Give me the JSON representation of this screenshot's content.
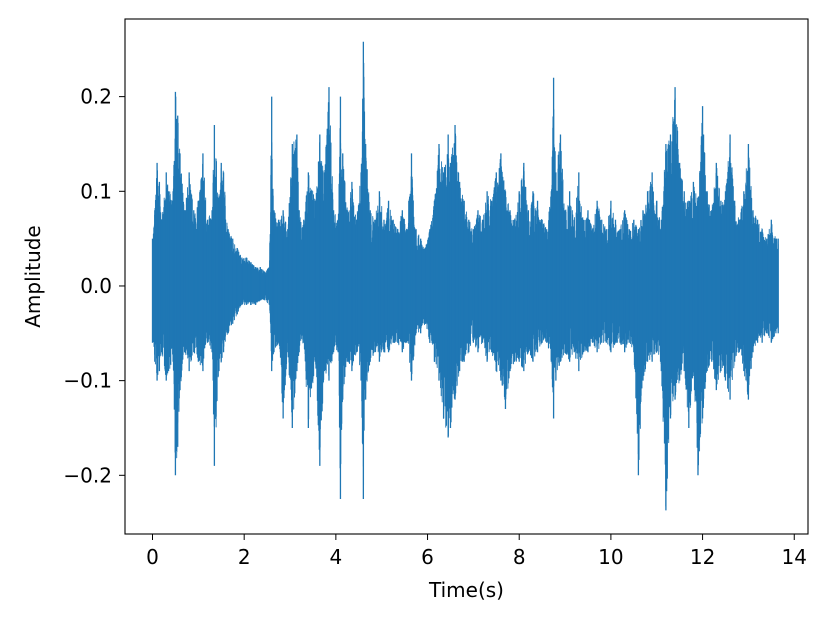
{
  "chart_data": {
    "type": "line",
    "title": "",
    "xlabel": "Time(s)",
    "ylabel": "Amplitude",
    "xlim": [
      -0.6,
      14.3
    ],
    "ylim": [
      -0.262,
      0.282
    ],
    "xticks": [
      0,
      2,
      4,
      6,
      8,
      10,
      12,
      14
    ],
    "xtick_labels": [
      "0",
      "2",
      "4",
      "6",
      "8",
      "10",
      "12",
      "14"
    ],
    "yticks": [
      0.2,
      0.1,
      0.0,
      -0.1,
      -0.2
    ],
    "ytick_labels": [
      "0.2",
      "0.1",
      "0.0",
      "−0.1",
      "−0.2"
    ],
    "grid": false,
    "legend": "none",
    "series": [
      {
        "color": "#1f77b4",
        "duration_s": 13.65,
        "envelope": {
          "t": [
            0.0,
            0.05,
            0.1,
            0.15,
            0.2,
            0.3,
            0.35,
            0.45,
            0.5,
            0.55,
            0.6,
            0.7,
            0.8,
            0.9,
            1.0,
            1.1,
            1.2,
            1.3,
            1.35,
            1.45,
            1.5,
            1.55,
            1.65,
            1.75,
            1.85,
            1.95,
            2.05,
            2.15,
            2.25,
            2.35,
            2.45,
            2.55,
            2.6,
            2.65,
            2.75,
            2.85,
            2.95,
            3.05,
            3.15,
            3.2,
            3.3,
            3.4,
            3.55,
            3.65,
            3.75,
            3.85,
            3.95,
            4.05,
            4.1,
            4.15,
            4.25,
            4.35,
            4.45,
            4.55,
            4.6,
            4.65,
            4.75,
            4.85,
            4.95,
            5.05,
            5.15,
            5.25,
            5.35,
            5.45,
            5.55,
            5.65,
            5.75,
            5.85,
            5.95,
            6.05,
            6.15,
            6.25,
            6.35,
            6.45,
            6.5,
            6.6,
            6.7,
            6.8,
            6.9,
            7.0,
            7.1,
            7.2,
            7.3,
            7.4,
            7.5,
            7.6,
            7.7,
            7.8,
            7.9,
            8.0,
            8.1,
            8.2,
            8.3,
            8.4,
            8.5,
            8.6,
            8.7,
            8.75,
            8.8,
            8.9,
            9.0,
            9.1,
            9.2,
            9.3,
            9.4,
            9.5,
            9.6,
            9.7,
            9.8,
            9.9,
            10.0,
            10.1,
            10.2,
            10.3,
            10.4,
            10.5,
            10.6,
            10.7,
            10.8,
            10.9,
            11.0,
            11.1,
            11.2,
            11.3,
            11.4,
            11.5,
            11.6,
            11.7,
            11.8,
            11.9,
            12.0,
            12.1,
            12.2,
            12.3,
            12.4,
            12.5,
            12.6,
            12.7,
            12.8,
            12.9,
            13.0,
            13.1,
            13.2,
            13.3,
            13.4,
            13.5,
            13.6,
            13.65
          ],
          "max": [
            0.05,
            0.08,
            0.13,
            0.11,
            0.07,
            0.12,
            0.1,
            0.1,
            0.205,
            0.18,
            0.14,
            0.08,
            0.12,
            0.08,
            0.09,
            0.14,
            0.07,
            0.08,
            0.17,
            0.09,
            0.13,
            0.12,
            0.06,
            0.05,
            0.04,
            0.03,
            0.03,
            0.025,
            0.02,
            0.02,
            0.015,
            0.02,
            0.2,
            0.08,
            0.07,
            0.08,
            0.06,
            0.15,
            0.16,
            0.08,
            0.07,
            0.12,
            0.09,
            0.16,
            0.12,
            0.21,
            0.08,
            0.07,
            0.2,
            0.14,
            0.08,
            0.11,
            0.07,
            0.12,
            0.258,
            0.15,
            0.08,
            0.07,
            0.1,
            0.07,
            0.09,
            0.07,
            0.06,
            0.08,
            0.06,
            0.14,
            0.06,
            0.05,
            0.04,
            0.06,
            0.09,
            0.15,
            0.12,
            0.16,
            0.13,
            0.17,
            0.11,
            0.09,
            0.07,
            0.06,
            0.08,
            0.07,
            0.1,
            0.09,
            0.12,
            0.14,
            0.1,
            0.08,
            0.07,
            0.1,
            0.13,
            0.08,
            0.1,
            0.09,
            0.07,
            0.06,
            0.1,
            0.22,
            0.12,
            0.16,
            0.08,
            0.1,
            0.07,
            0.12,
            0.07,
            0.08,
            0.06,
            0.09,
            0.07,
            0.06,
            0.09,
            0.07,
            0.06,
            0.08,
            0.06,
            0.07,
            0.06,
            0.08,
            0.1,
            0.12,
            0.09,
            0.07,
            0.15,
            0.16,
            0.21,
            0.13,
            0.1,
            0.09,
            0.11,
            0.09,
            0.19,
            0.1,
            0.08,
            0.13,
            0.09,
            0.1,
            0.16,
            0.09,
            0.07,
            0.1,
            0.15,
            0.08,
            0.07,
            0.06,
            0.05,
            0.07,
            0.05,
            0.05
          ],
          "min": [
            -0.06,
            -0.08,
            -0.1,
            -0.09,
            -0.07,
            -0.1,
            -0.09,
            -0.08,
            -0.2,
            -0.17,
            -0.11,
            -0.07,
            -0.09,
            -0.07,
            -0.08,
            -0.09,
            -0.06,
            -0.07,
            -0.19,
            -0.09,
            -0.08,
            -0.07,
            -0.05,
            -0.04,
            -0.03,
            -0.02,
            -0.02,
            -0.02,
            -0.02,
            -0.015,
            -0.015,
            -0.02,
            -0.09,
            -0.07,
            -0.06,
            -0.14,
            -0.07,
            -0.15,
            -0.09,
            -0.07,
            -0.06,
            -0.15,
            -0.08,
            -0.19,
            -0.09,
            -0.1,
            -0.07,
            -0.07,
            -0.225,
            -0.12,
            -0.08,
            -0.09,
            -0.07,
            -0.1,
            -0.225,
            -0.12,
            -0.08,
            -0.07,
            -0.08,
            -0.07,
            -0.07,
            -0.06,
            -0.06,
            -0.07,
            -0.06,
            -0.1,
            -0.05,
            -0.05,
            -0.04,
            -0.06,
            -0.08,
            -0.1,
            -0.14,
            -0.16,
            -0.15,
            -0.12,
            -0.09,
            -0.08,
            -0.07,
            -0.06,
            -0.07,
            -0.06,
            -0.08,
            -0.07,
            -0.09,
            -0.1,
            -0.13,
            -0.09,
            -0.08,
            -0.08,
            -0.09,
            -0.07,
            -0.08,
            -0.07,
            -0.06,
            -0.06,
            -0.08,
            -0.14,
            -0.1,
            -0.08,
            -0.07,
            -0.08,
            -0.07,
            -0.09,
            -0.07,
            -0.07,
            -0.06,
            -0.07,
            -0.06,
            -0.06,
            -0.07,
            -0.06,
            -0.06,
            -0.07,
            -0.06,
            -0.07,
            -0.2,
            -0.1,
            -0.08,
            -0.08,
            -0.07,
            -0.09,
            -0.237,
            -0.14,
            -0.12,
            -0.1,
            -0.09,
            -0.15,
            -0.09,
            -0.2,
            -0.14,
            -0.09,
            -0.08,
            -0.11,
            -0.09,
            -0.1,
            -0.12,
            -0.08,
            -0.07,
            -0.09,
            -0.12,
            -0.07,
            -0.06,
            -0.06,
            -0.05,
            -0.06,
            -0.05,
            -0.05
          ]
        }
      }
    ]
  }
}
